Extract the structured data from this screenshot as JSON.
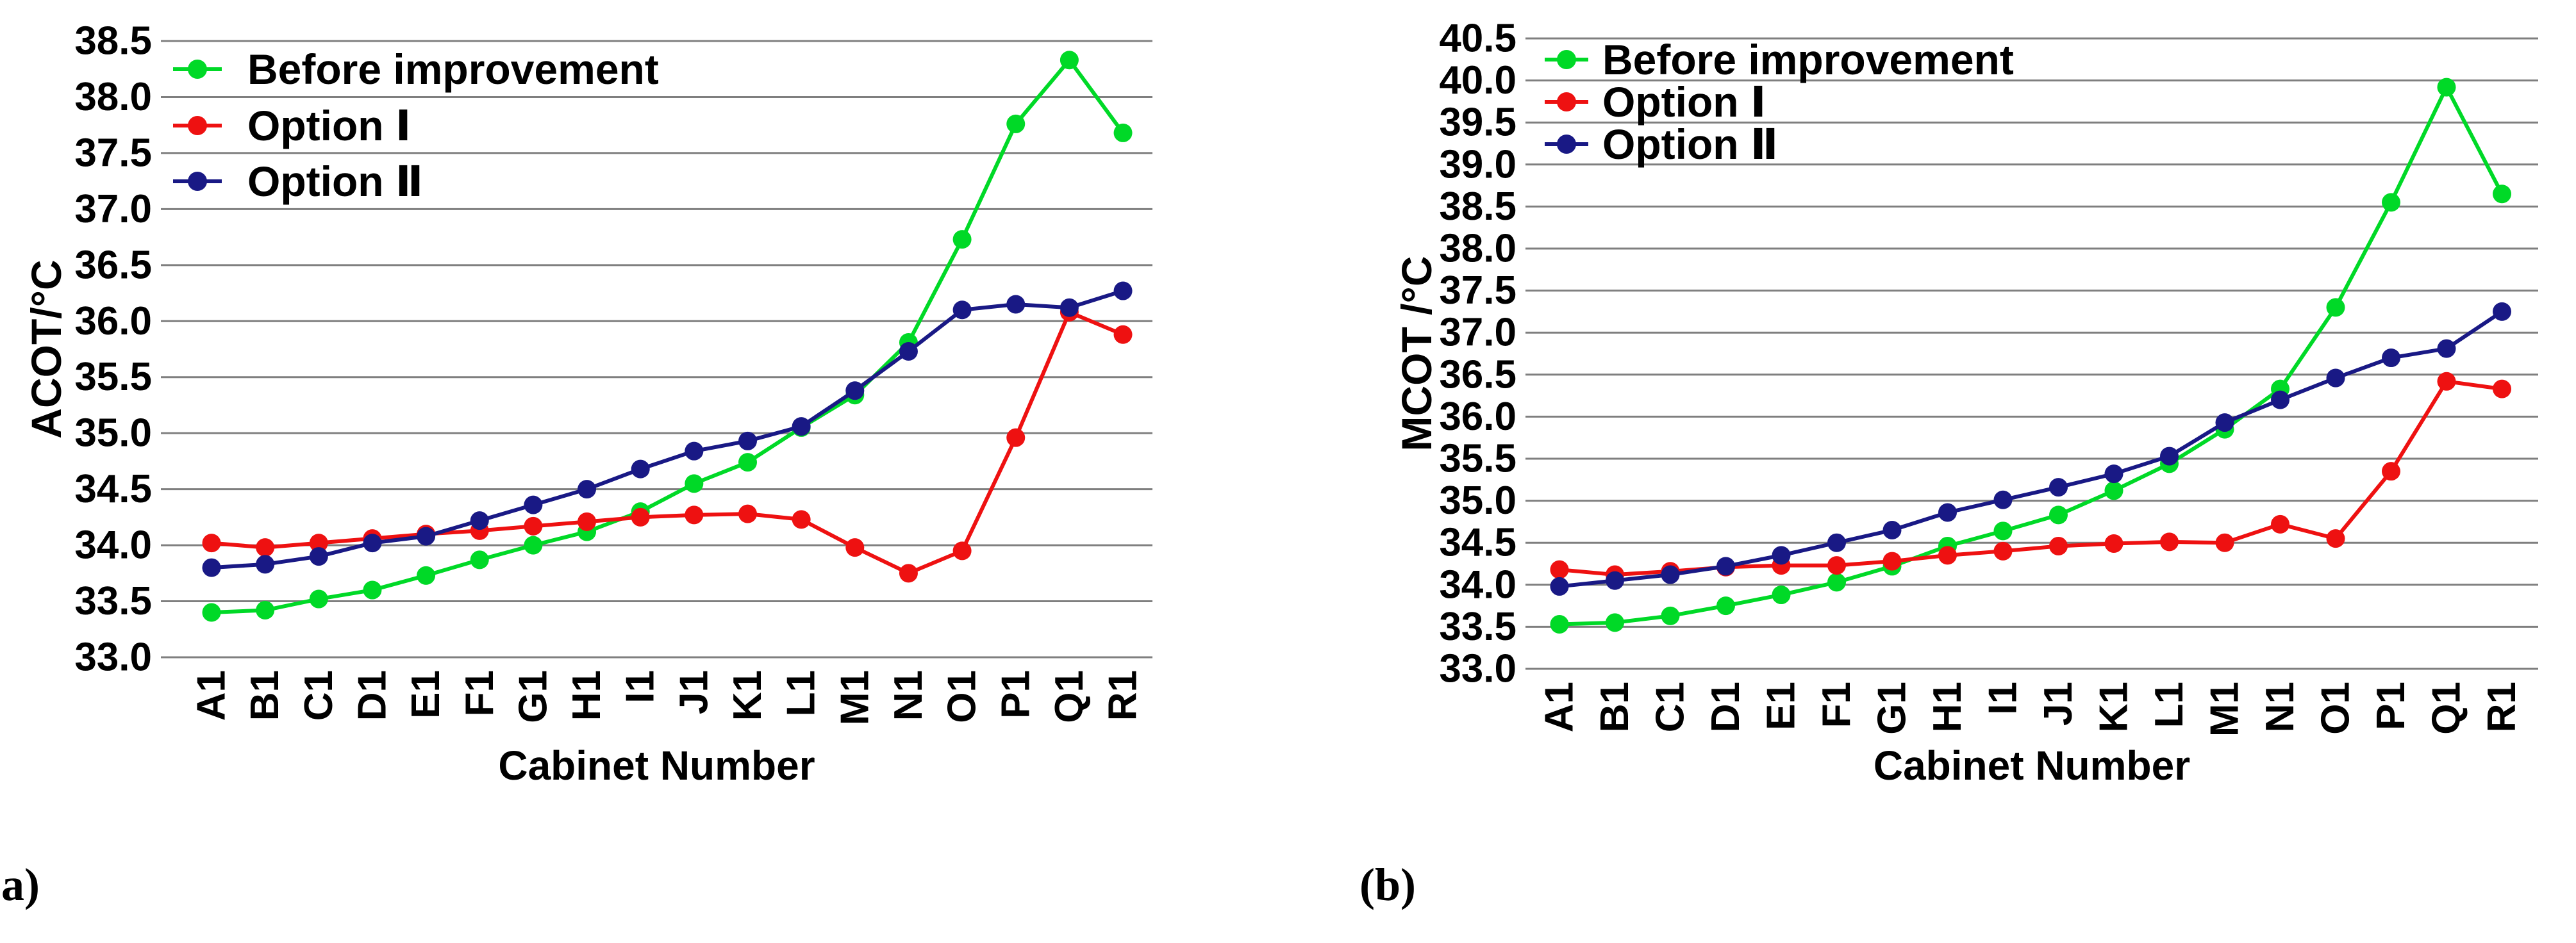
{
  "chart_data": [
    {
      "type": "line",
      "panel_label": "(a)",
      "title": "",
      "ylabel": "ACOT/°C",
      "xlabel": "Cabinet Number",
      "ylim": [
        33.0,
        38.5
      ],
      "y_step": 0.5,
      "y_ticks": [
        "38.5",
        "38.0",
        "37.5",
        "37.0",
        "36.5",
        "36.0",
        "35.5",
        "35.0",
        "34.5",
        "34.0",
        "33.5",
        "33.0"
      ],
      "grid": true,
      "grid_color": "#7F7F7F",
      "legend_position": "top-left",
      "categories": [
        "A1",
        "B1",
        "C1",
        "D1",
        "E1",
        "F1",
        "G1",
        "H1",
        "I1",
        "J1",
        "K1",
        "L1",
        "M1",
        "N1",
        "O1",
        "P1",
        "Q1",
        "R1"
      ],
      "series": [
        {
          "name": "Before improvement",
          "color": "#00D927",
          "values": [
            33.4,
            33.42,
            33.52,
            33.6,
            33.73,
            33.87,
            34.0,
            34.12,
            34.3,
            34.55,
            34.74,
            35.05,
            35.34,
            35.81,
            36.73,
            37.76,
            38.33,
            37.68
          ]
        },
        {
          "name": "Option Ⅰ",
          "color": "#EE1111",
          "values": [
            34.02,
            33.98,
            34.02,
            34.06,
            34.1,
            34.13,
            34.17,
            34.21,
            34.25,
            34.27,
            34.28,
            34.23,
            33.98,
            33.75,
            33.95,
            34.96,
            36.08,
            35.88
          ]
        },
        {
          "name": "Option Ⅱ",
          "color": "#191985",
          "values": [
            33.8,
            33.83,
            33.9,
            34.02,
            34.08,
            34.22,
            34.36,
            34.5,
            34.68,
            34.84,
            34.93,
            35.06,
            35.38,
            35.73,
            36.1,
            36.15,
            36.12,
            36.27
          ]
        }
      ]
    },
    {
      "type": "line",
      "panel_label": "(b)",
      "title": "",
      "ylabel": "MCOT /°C",
      "xlabel": "Cabinet Number",
      "ylim": [
        33.0,
        40.5
      ],
      "y_step": 0.5,
      "y_ticks": [
        "40.5",
        "40.0",
        "39.5",
        "39.0",
        "38.5",
        "38.0",
        "37.5",
        "37.0",
        "36.5",
        "36.0",
        "35.5",
        "35.0",
        "34.5",
        "34.0",
        "33.5",
        "33.0"
      ],
      "grid": true,
      "grid_color": "#7F7F7F",
      "legend_position": "top-left",
      "categories": [
        "A1",
        "B1",
        "C1",
        "D1",
        "E1",
        "F1",
        "G1",
        "H1",
        "I1",
        "J1",
        "K1",
        "L1",
        "M1",
        "N1",
        "O1",
        "P1",
        "Q1",
        "R1"
      ],
      "series": [
        {
          "name": "Before improvement",
          "color": "#00D927",
          "values": [
            33.53,
            33.55,
            33.63,
            33.75,
            33.88,
            34.03,
            34.22,
            34.46,
            34.64,
            34.83,
            35.12,
            35.44,
            35.85,
            36.33,
            37.3,
            38.55,
            39.92,
            38.65
          ]
        },
        {
          "name": "Option Ⅰ",
          "color": "#EE1111",
          "values": [
            34.18,
            34.12,
            34.16,
            34.21,
            34.23,
            34.23,
            34.28,
            34.35,
            34.4,
            34.46,
            34.49,
            34.51,
            34.5,
            34.72,
            34.55,
            35.35,
            36.42,
            36.33
          ]
        },
        {
          "name": "Option Ⅱ",
          "color": "#191985",
          "values": [
            33.98,
            34.05,
            34.12,
            34.22,
            34.35,
            34.5,
            34.65,
            34.86,
            35.01,
            35.16,
            35.32,
            35.53,
            35.93,
            36.2,
            36.46,
            36.7,
            36.81,
            37.25
          ]
        }
      ]
    }
  ]
}
